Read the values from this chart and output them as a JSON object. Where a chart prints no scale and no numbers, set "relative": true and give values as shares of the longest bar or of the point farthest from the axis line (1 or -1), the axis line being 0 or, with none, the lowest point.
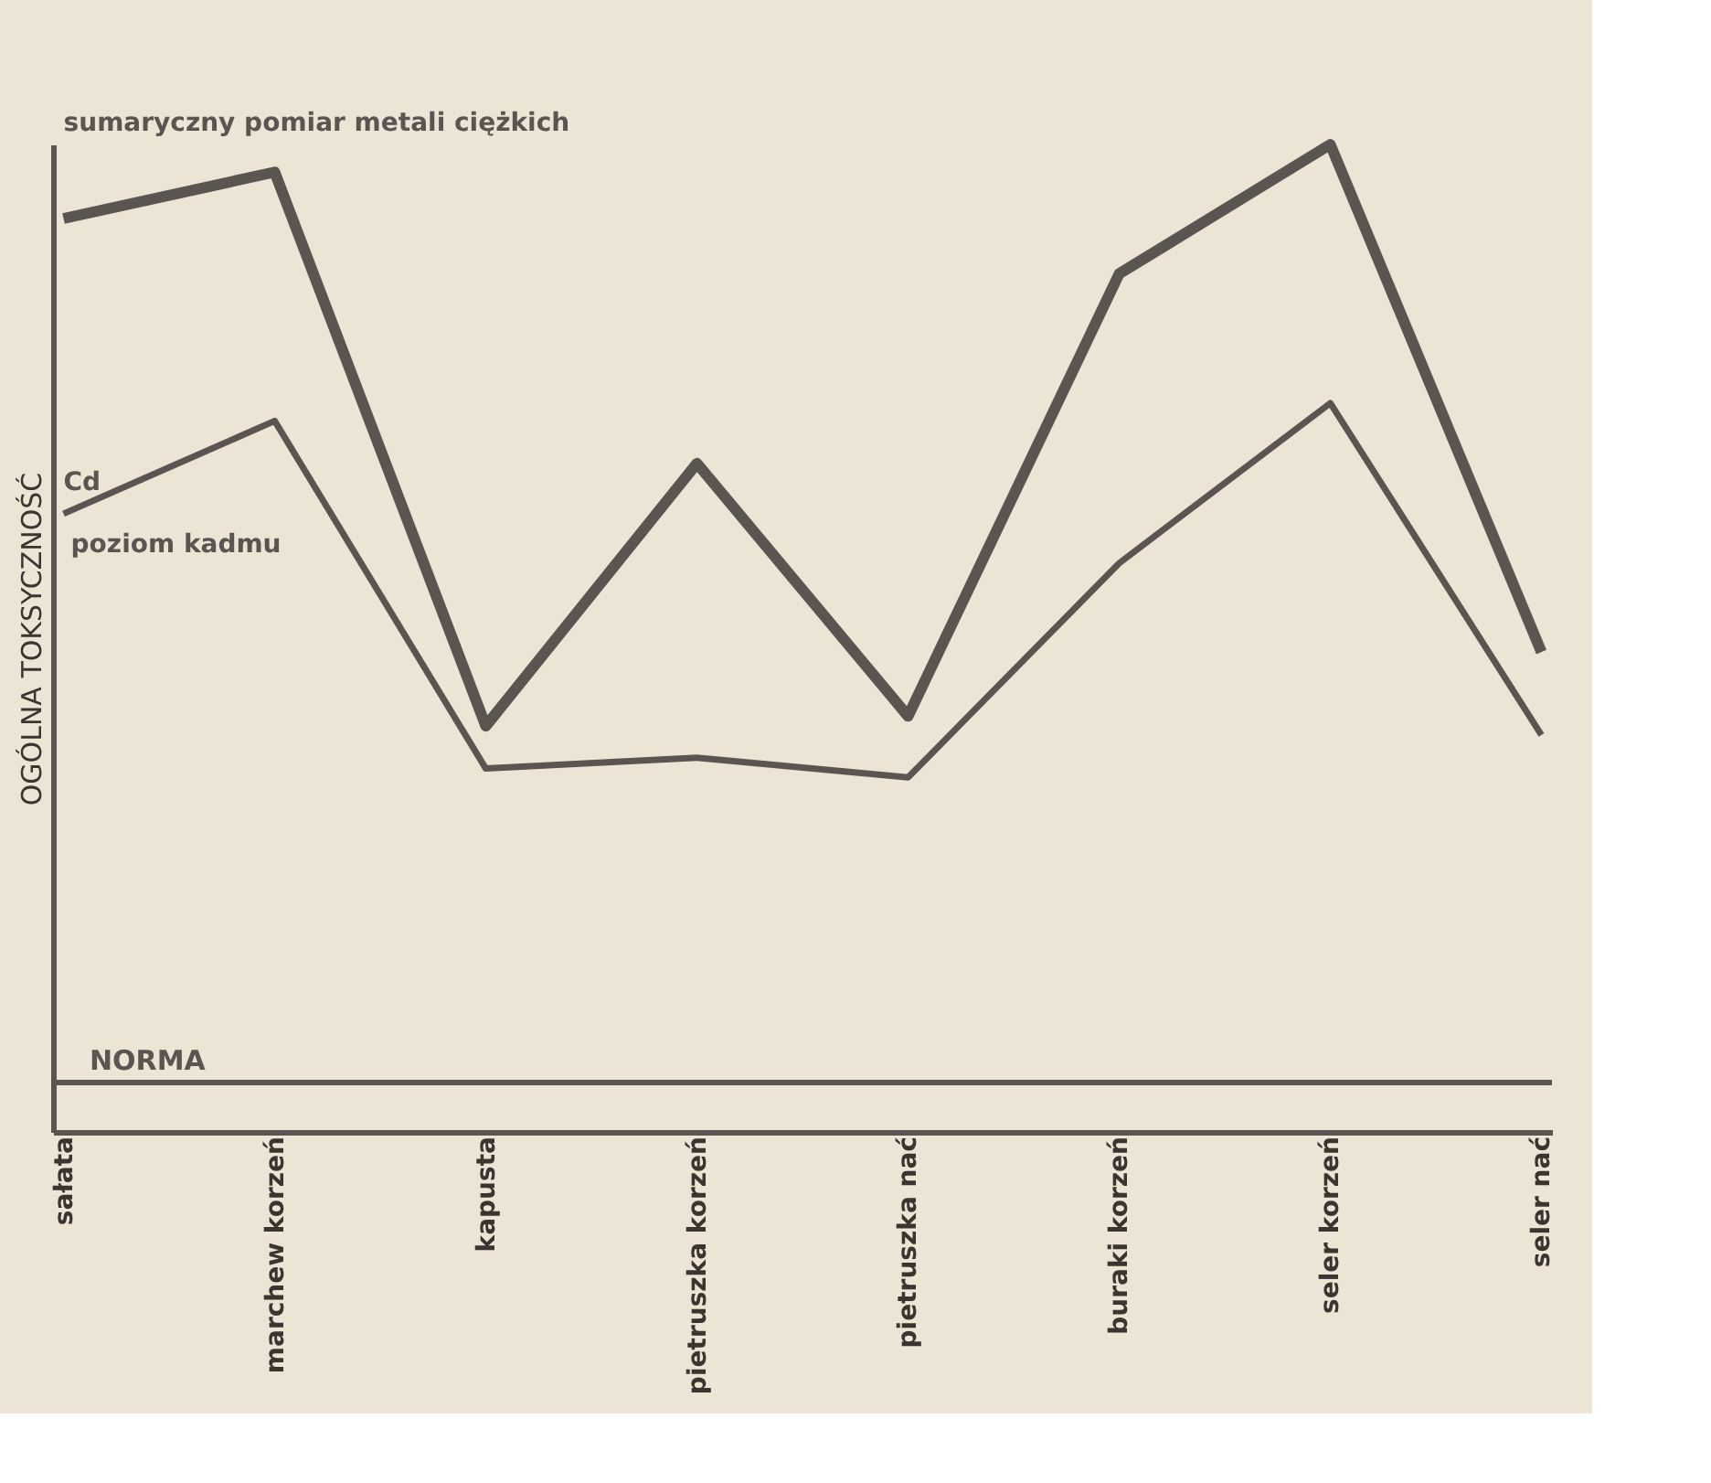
{
  "chart_data": {
    "type": "line",
    "relative": true,
    "ylabel": "OGÓLNA TOKSYCZNOŚĆ",
    "categories": [
      "sałata",
      "marchew korzeń",
      "kapusta",
      "pietruszka korzeń",
      "pietruszka nać",
      "buraki korzeń",
      "seler korzeń",
      "seler nać"
    ],
    "series": [
      {
        "name": "sumaryczny pomiar metali ciężkich",
        "color": "#5a5550",
        "values": [
          0.925,
          0.972,
          0.411,
          0.677,
          0.421,
          0.869,
          1.0,
          0.486
        ]
      },
      {
        "name": "Cd",
        "color": "#5a5550",
        "values": [
          0.626,
          0.72,
          0.368,
          0.379,
          0.359,
          0.576,
          0.738,
          0.402
        ]
      }
    ],
    "annotations": [
      "poziom kadmu"
    ],
    "ref_lines": [
      {
        "axis": "y",
        "value": 0.05,
        "label": "NORMA",
        "color": "#5a5550"
      }
    ],
    "grid": false,
    "line_style": "solid",
    "marker": "none"
  }
}
